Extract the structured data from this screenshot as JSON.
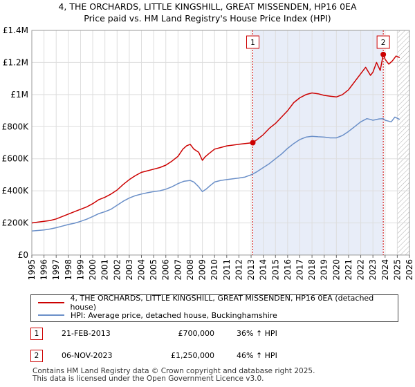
{
  "title_line1": "4, THE ORCHARDS, LITTLE KINGSHILL, GREAT MISSENDEN, HP16 0EA",
  "title_line2": "Price paid vs. HM Land Registry's House Price Index (HPI)",
  "colors": {
    "property": "#cc0000",
    "hpi": "#6a8fc8",
    "shade": "#e8edf8",
    "grid": "#dddddd",
    "future_hatch": "#aaaaaa"
  },
  "legend": {
    "property_label": "4, THE ORCHARDS, LITTLE KINGSHILL, GREAT MISSENDEN, HP16 0EA (detached house)",
    "hpi_label": "HPI: Average price, detached house, Buckinghamshire"
  },
  "sales": [
    {
      "num": "1",
      "date": "21-FEB-2013",
      "price": "£700,000",
      "hpi_change": "36% ↑ HPI",
      "year": 2013.14,
      "value": 700000
    },
    {
      "num": "2",
      "date": "06-NOV-2023",
      "price": "£1,250,000",
      "hpi_change": "46% ↑ HPI",
      "year": 2023.85,
      "value": 1250000
    }
  ],
  "footer": {
    "line1": "Contains HM Land Registry data © Crown copyright and database right 2025.",
    "line2": "This data is licensed under the Open Government Licence v3.0."
  },
  "chart_data": {
    "type": "line",
    "title": "4, THE ORCHARDS, LITTLE KINGSHILL, GREAT MISSENDEN, HP16 0EA",
    "subtitle": "Price paid vs. HM Land Registry's House Price Index (HPI)",
    "xlabel": "",
    "ylabel": "",
    "xlim": [
      1995,
      2026
    ],
    "ylim": [
      0,
      1400000
    ],
    "x_ticks": [
      "1995",
      "1996",
      "1997",
      "1998",
      "1999",
      "2000",
      "2001",
      "2002",
      "2003",
      "2004",
      "2005",
      "2006",
      "2007",
      "2008",
      "2009",
      "2010",
      "2011",
      "2012",
      "2013",
      "2014",
      "2015",
      "2016",
      "2017",
      "2018",
      "2019",
      "2020",
      "2021",
      "2022",
      "2023",
      "2024",
      "2025",
      "2026"
    ],
    "y_ticks": [
      {
        "value": 0,
        "label": "£0"
      },
      {
        "value": 200000,
        "label": "£200K"
      },
      {
        "value": 400000,
        "label": "£400K"
      },
      {
        "value": 600000,
        "label": "£600K"
      },
      {
        "value": 800000,
        "label": "£800K"
      },
      {
        "value": 1000000,
        "label": "£1M"
      },
      {
        "value": 1200000,
        "label": "£1.2M"
      },
      {
        "value": 1400000,
        "label": "£1.4M"
      }
    ],
    "shaded_period": [
      2013.14,
      2023.85
    ],
    "future_from": 2025.0,
    "grid": true,
    "series": [
      {
        "name": "4, THE ORCHARDS, LITTLE KINGSHILL, GREAT MISSENDEN, HP16 0EA (detached house)",
        "x": [
          1995.0,
          1995.5,
          1996.0,
          1996.5,
          1997.0,
          1997.5,
          1998.0,
          1998.5,
          1999.0,
          1999.5,
          2000.0,
          2000.5,
          2001.0,
          2001.5,
          2002.0,
          2002.5,
          2003.0,
          2003.5,
          2004.0,
          2004.5,
          2005.0,
          2005.5,
          2006.0,
          2006.5,
          2007.0,
          2007.4,
          2007.7,
          2008.0,
          2008.3,
          2008.7,
          2009.0,
          2009.2,
          2009.5,
          2010.0,
          2010.5,
          2011.0,
          2011.5,
          2012.0,
          2012.5,
          2013.14,
          2013.5,
          2014.0,
          2014.5,
          2015.0,
          2015.5,
          2016.0,
          2016.5,
          2017.0,
          2017.5,
          2018.0,
          2018.5,
          2019.0,
          2019.5,
          2020.0,
          2020.5,
          2021.0,
          2021.5,
          2022.0,
          2022.4,
          2022.8,
          2023.0,
          2023.3,
          2023.6,
          2023.85,
          2024.0,
          2024.3,
          2024.6,
          2024.9,
          2025.2
        ],
        "values": [
          200000,
          205000,
          210000,
          215000,
          225000,
          240000,
          255000,
          270000,
          285000,
          300000,
          320000,
          345000,
          360000,
          380000,
          405000,
          440000,
          470000,
          495000,
          515000,
          525000,
          535000,
          545000,
          560000,
          585000,
          615000,
          660000,
          680000,
          690000,
          660000,
          640000,
          590000,
          610000,
          630000,
          660000,
          670000,
          680000,
          685000,
          690000,
          695000,
          700000,
          720000,
          750000,
          790000,
          820000,
          860000,
          900000,
          950000,
          980000,
          1000000,
          1010000,
          1005000,
          995000,
          990000,
          985000,
          1000000,
          1030000,
          1080000,
          1130000,
          1170000,
          1120000,
          1140000,
          1200000,
          1150000,
          1250000,
          1220000,
          1190000,
          1210000,
          1240000,
          1230000
        ]
      },
      {
        "name": "HPI: Average price, detached house, Buckinghamshire",
        "x": [
          1995.0,
          1995.5,
          1996.0,
          1996.5,
          1997.0,
          1997.5,
          1998.0,
          1998.5,
          1999.0,
          1999.5,
          2000.0,
          2000.5,
          2001.0,
          2001.5,
          2002.0,
          2002.5,
          2003.0,
          2003.5,
          2004.0,
          2004.5,
          2005.0,
          2005.5,
          2006.0,
          2006.5,
          2007.0,
          2007.5,
          2008.0,
          2008.3,
          2008.7,
          2009.0,
          2009.3,
          2009.6,
          2010.0,
          2010.5,
          2011.0,
          2011.5,
          2012.0,
          2012.5,
          2013.0,
          2013.14,
          2013.5,
          2014.0,
          2014.5,
          2015.0,
          2015.5,
          2016.0,
          2016.5,
          2017.0,
          2017.5,
          2018.0,
          2018.5,
          2019.0,
          2019.5,
          2020.0,
          2020.5,
          2021.0,
          2021.5,
          2022.0,
          2022.5,
          2022.8,
          2023.0,
          2023.5,
          2023.85,
          2024.0,
          2024.5,
          2024.8,
          2025.2
        ],
        "values": [
          150000,
          153000,
          156000,
          162000,
          170000,
          180000,
          190000,
          198000,
          210000,
          223000,
          240000,
          258000,
          270000,
          285000,
          310000,
          335000,
          355000,
          370000,
          380000,
          388000,
          395000,
          400000,
          410000,
          425000,
          445000,
          460000,
          465000,
          455000,
          425000,
          395000,
          410000,
          430000,
          455000,
          465000,
          470000,
          475000,
          480000,
          486000,
          500000,
          505000,
          520000,
          545000,
          570000,
          600000,
          630000,
          665000,
          695000,
          720000,
          735000,
          740000,
          737000,
          735000,
          730000,
          730000,
          745000,
          770000,
          800000,
          830000,
          850000,
          845000,
          840000,
          848000,
          850000,
          840000,
          830000,
          860000,
          845000
        ]
      }
    ]
  }
}
